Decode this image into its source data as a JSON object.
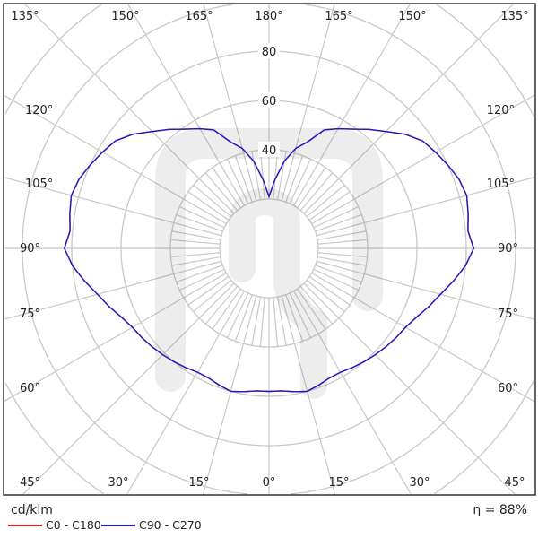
{
  "chart_data": {
    "type": "polar",
    "unit_label": "cd/klm",
    "efficiency_label": "η = 88%",
    "radial_ticks": [
      40,
      60,
      80
    ],
    "radial_rings": [
      20,
      40,
      60,
      80,
      100,
      120
    ],
    "radial_max": 120,
    "angle_labels_left": [
      "135°",
      "150°",
      "165°",
      "180°",
      "120°",
      "105°",
      "90°",
      "75°",
      "60°",
      "45°",
      "30°",
      "15°",
      "0°"
    ],
    "angle_labels_right": [
      "165°",
      "150°",
      "135°",
      "120°",
      "105°",
      "90°",
      "75°",
      "60°",
      "15°",
      "30°",
      "45°"
    ],
    "grid": true,
    "legend_placement": "bottom-left",
    "angles": [
      0,
      5,
      10,
      15,
      20,
      25,
      30,
      35,
      40,
      45,
      50,
      55,
      60,
      65,
      70,
      75,
      80,
      85,
      90,
      95,
      100,
      105,
      110,
      115,
      120,
      125,
      130,
      135,
      140,
      145,
      150,
      155,
      160,
      165,
      170,
      175,
      180
    ],
    "series": [
      {
        "name": "C0 - C180",
        "color": "#e02020",
        "values": [
          58,
          58,
          59,
          60,
          59,
          58,
          58,
          59,
          60,
          61,
          62,
          63,
          64,
          66,
          69,
          72,
          76,
          80,
          83,
          81,
          82,
          83,
          82,
          80,
          78,
          76,
          72,
          67,
          63,
          59,
          56,
          53,
          46,
          42,
          36,
          28,
          21
        ]
      },
      {
        "name": "C90 - C270",
        "color": "#1a1acc",
        "values": [
          58,
          58,
          59,
          60,
          59,
          58,
          58,
          59,
          60,
          61,
          62,
          63,
          64,
          66,
          69,
          72,
          76,
          80,
          83,
          81,
          82,
          83,
          82,
          80,
          78,
          76,
          72,
          67,
          63,
          59,
          56,
          53,
          46,
          42,
          36,
          28,
          21
        ]
      }
    ]
  }
}
